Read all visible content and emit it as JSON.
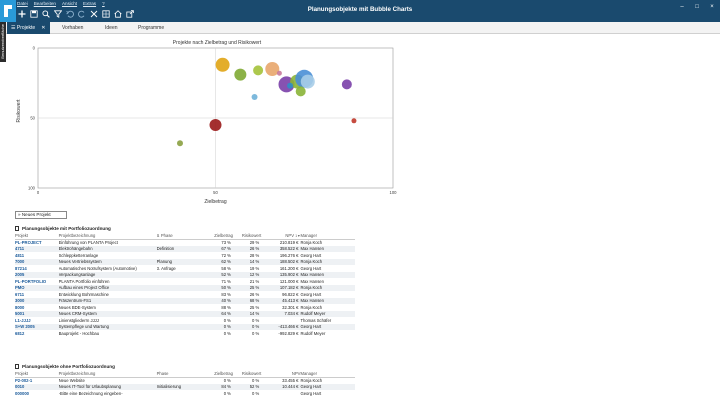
{
  "menu": [
    "Datei",
    "Bearbeiten",
    "Ansicht",
    "Extras",
    "?"
  ],
  "toolbar_icons": [
    "plus-icon",
    "save-icon",
    "search-icon",
    "filter-icon",
    "undo-icon",
    "redo-icon",
    "cut-icon",
    "grid-icon",
    "home-icon",
    "export-icon"
  ],
  "app_title": "Planungsobjekte mit Bubble Charts",
  "window_controls": [
    "–",
    "□",
    "×"
  ],
  "side_tab": "Benutzeroberfläche",
  "tabs": [
    {
      "label": "Projekte",
      "active": true
    },
    {
      "label": "Vorhaben",
      "active": false
    },
    {
      "label": "Ideen",
      "active": false
    },
    {
      "label": "Programme",
      "active": false
    }
  ],
  "chart_data": {
    "type": "scatter",
    "title": "Projekte nach Zielbetrag und Risikowert",
    "xlabel": "Zielbetrag",
    "ylabel": "Risikowert",
    "xlim": [
      0,
      100
    ],
    "ylim": [
      100,
      0
    ],
    "x_ticks": [
      "0",
      "50",
      "100"
    ],
    "y_ticks": [
      "0",
      "50",
      "100"
    ],
    "grid": true,
    "points": [
      {
        "x": 52,
        "y": 12,
        "r": 7,
        "color": "#e0a414"
      },
      {
        "x": 57,
        "y": 19,
        "r": 6,
        "color": "#7faa33"
      },
      {
        "x": 62,
        "y": 16,
        "r": 5,
        "color": "#a4c23a"
      },
      {
        "x": 66,
        "y": 15,
        "r": 7,
        "color": "#e8a66c"
      },
      {
        "x": 70,
        "y": 26,
        "r": 8,
        "color": "#7a3fa8"
      },
      {
        "x": 73,
        "y": 24,
        "r": 7,
        "color": "#8ab437"
      },
      {
        "x": 75,
        "y": 22,
        "r": 9,
        "color": "#4a8fd6"
      },
      {
        "x": 76,
        "y": 24,
        "r": 7,
        "color": "#a7cde8"
      },
      {
        "x": 74,
        "y": 31,
        "r": 5,
        "color": "#8ab437"
      },
      {
        "x": 71,
        "y": 27,
        "r": 3,
        "color": "#2d8fc8"
      },
      {
        "x": 68,
        "y": 18,
        "r": 2.5,
        "color": "#c67a9c"
      },
      {
        "x": 87,
        "y": 26,
        "r": 5,
        "color": "#7a3fa8"
      },
      {
        "x": 61,
        "y": 35,
        "r": 3,
        "color": "#6fb1d8"
      },
      {
        "x": 50,
        "y": 55,
        "r": 6,
        "color": "#9a1a1a"
      },
      {
        "x": 89,
        "y": 52,
        "r": 2.5,
        "color": "#c0392b"
      },
      {
        "x": 40,
        "y": 68,
        "r": 3,
        "color": "#8aa040"
      }
    ]
  },
  "new_project_label": "Neues Projekt",
  "table_headers": {
    "id": "Projekt",
    "name": "Projektbezeichnung",
    "phase": "Phase",
    "ziel": "Zielbetrag",
    "risk": "Risikowert",
    "npv": "NPV",
    "manager": "Manager"
  },
  "section1": {
    "title": "Planungsobjekte mit Portfoliozuordnung",
    "rows": [
      {
        "id": "PL-PROJECT",
        "name": "Einführung von PLANTA Project",
        "phase": "",
        "ziel": "73 %",
        "risk": "29 %",
        "npv": "210.819 €",
        "manager": "Ronja Koch"
      },
      {
        "id": "4711",
        "name": "Elektrohängebahn",
        "phase": "Definition",
        "ziel": "67 %",
        "risk": "26 %",
        "npv": "358.522 €",
        "manager": "Max Hansen"
      },
      {
        "id": "4811",
        "name": "Schleppketterranlage",
        "phase": "",
        "ziel": "72 %",
        "risk": "28 %",
        "npv": "196.276 €",
        "manager": "Georg Hart"
      },
      {
        "id": "7000",
        "name": "Neues Vertriebssystem",
        "phase": "Planung",
        "ziel": "62 %",
        "risk": "14 %",
        "npv": "188.502 €",
        "manager": "Ronja Koch"
      },
      {
        "id": "87214",
        "name": "Automatisches Notrufsystem (Automotive)",
        "phase": "3. Anfrage",
        "ziel": "58 %",
        "risk": "19 %",
        "npv": "161.200 €",
        "manager": "Georg Hart"
      },
      {
        "id": "2005",
        "name": "Verpackungsanlage",
        "phase": "",
        "ziel": "52 %",
        "risk": "12 %",
        "npv": "135.902 €",
        "manager": "Max Hansen"
      },
      {
        "id": "PL-PORTFOLIO",
        "name": "PLANTA Portfolio einführen",
        "phase": "",
        "ziel": "71 %",
        "risk": "21 %",
        "npv": "121.000 €",
        "manager": "Max Hansen"
      },
      {
        "id": "PMO",
        "name": "Aufbau eines Project Office",
        "phase": "",
        "ziel": "50 %",
        "risk": "25 %",
        "npv": "107.182 €",
        "manager": "Ronja Koch"
      },
      {
        "id": "6711",
        "name": "Entwicklung Bohrmaschine",
        "phase": "",
        "ziel": "83 %",
        "risk": "26 %",
        "npv": "96.822 €",
        "manager": "Georg Hart"
      },
      {
        "id": "3000",
        "name": "Fräszentrum-FS1",
        "phase": "",
        "ziel": "40 %",
        "risk": "68 %",
        "npv": "45.413 €",
        "manager": "Max Hansen"
      },
      {
        "id": "8000",
        "name": "Neues BDE-System",
        "phase": "",
        "ziel": "88 %",
        "risk": "25 %",
        "npv": "32.301 €",
        "manager": "Ronja Koch"
      },
      {
        "id": "5001",
        "name": "Neues CRM-System",
        "phase": "",
        "ziel": "64 %",
        "risk": "14 %",
        "npv": "7.034 €",
        "manager": "Rudolf Meyer"
      },
      {
        "id": "L1-JJJJ",
        "name": "Linienstgliederrn JJJJ",
        "phase": "",
        "ziel": "0 %",
        "risk": "0 %",
        "npv": "",
        "manager": "Thomas Schäfer"
      },
      {
        "id": "S+W 2005",
        "name": "Systempflege und Wartung",
        "phase": "",
        "ziel": "0 %",
        "risk": "0 %",
        "npv": "-413.466 €",
        "manager": "Georg Hart"
      },
      {
        "id": "6812",
        "name": "Bauprojekt - Hochbau",
        "phase": "",
        "ziel": "0 %",
        "risk": "0 %",
        "npv": "-992.829 €",
        "manager": "Rudolf Meyer"
      }
    ]
  },
  "section2": {
    "title": "Planungsobjekte ohne Portfoliozuordnung",
    "rows": [
      {
        "id": "P2-002-1",
        "name": "Neue Website",
        "phase": "",
        "ziel": "0 %",
        "risk": "0 %",
        "npv": "33.455 €",
        "manager": "Ronja Koch"
      },
      {
        "id": "0010",
        "name": "Neues IT-Tool für Urlaubsplanung",
        "phase": "Initialisierung",
        "ziel": "84 %",
        "risk": "52 %",
        "npv": "10.444 €",
        "manager": "Georg Hart"
      },
      {
        "id": "000000",
        "name": "-Bitte eine Bezeichnung eingeben-",
        "phase": "",
        "ziel": "0 %",
        "risk": "0 %",
        "npv": "",
        "manager": "Georg Hart"
      }
    ]
  }
}
